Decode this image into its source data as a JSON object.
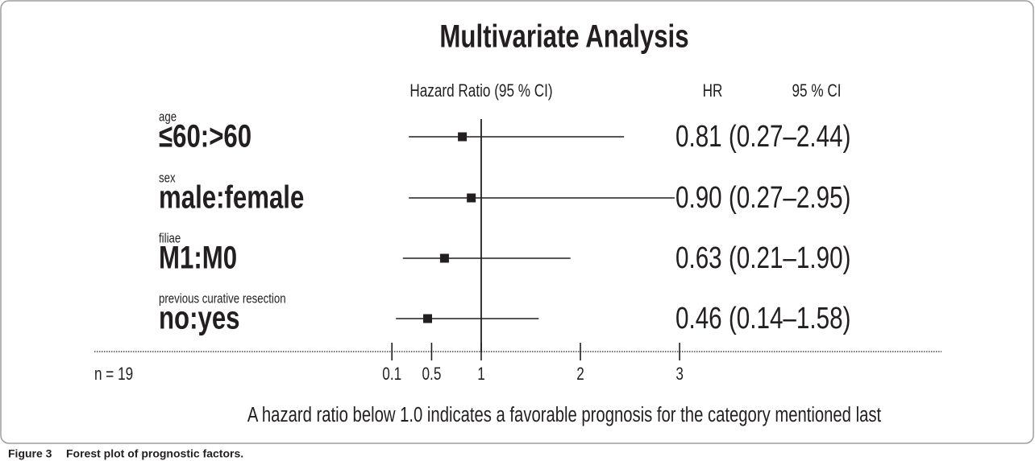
{
  "chart_data": {
    "type": "forest",
    "title": "Multivariate Analysis",
    "axis_header": "Hazard Ratio (95 % CI)",
    "column_headers": [
      "HR",
      "95 % CI"
    ],
    "groups": [
      "age",
      "sex",
      "filiae",
      "previous curative resection"
    ],
    "categories": [
      "≤60:>60",
      "male:female",
      "M1:M0",
      "no:yes"
    ],
    "values": [
      0.81,
      0.9,
      0.63,
      0.46
    ],
    "lower": [
      0.27,
      0.27,
      0.21,
      0.14
    ],
    "upper": [
      2.44,
      2.95,
      1.9,
      1.58
    ],
    "value_labels": [
      "0.81 (0.27–2.44)",
      "0.90 (0.27–2.95)",
      "0.63 (0.21–1.90)",
      "0.46 (0.14–1.58)"
    ],
    "reference": 1,
    "xlim": [
      -2.9,
      5.64
    ],
    "xticks": [
      0.1,
      0.5,
      1,
      2,
      3
    ],
    "sample_size": "n = 19",
    "footnote": "A hazard ratio below 1.0 indicates a favorable prognosis for the category mentioned last",
    "color": "#231f20"
  },
  "caption": {
    "label": "Figure 3",
    "text": "Forest plot of prognostic factors."
  }
}
